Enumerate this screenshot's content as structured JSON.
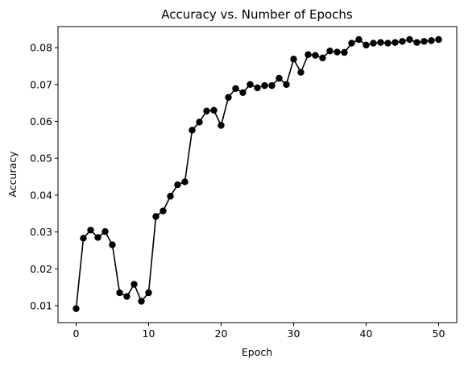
{
  "chart_data": {
    "type": "line",
    "title": "Accuracy vs. Number of Epochs",
    "xlabel": "Epoch",
    "ylabel": "Accuracy",
    "xlim": [
      -2.5,
      52.5
    ],
    "ylim": [
      0.0054,
      0.0857
    ],
    "x_ticks": [
      0,
      10,
      20,
      30,
      40,
      50
    ],
    "y_ticks": [
      0.01,
      0.02,
      0.03,
      0.04,
      0.05,
      0.06,
      0.07,
      0.08
    ],
    "x_tick_labels": [
      "0",
      "10",
      "20",
      "30",
      "40",
      "50"
    ],
    "y_tick_labels": [
      "0.01",
      "0.02",
      "0.03",
      "0.04",
      "0.05",
      "0.06",
      "0.07",
      "0.08"
    ],
    "grid": false,
    "line_color": "#000000",
    "marker": "circle",
    "series": [
      {
        "x": [
          0,
          1,
          2,
          3,
          4,
          5,
          6,
          7,
          8,
          9,
          10,
          11,
          12,
          13,
          14,
          15,
          16,
          17,
          18,
          19,
          20,
          21,
          22,
          23,
          24,
          25,
          26,
          27,
          28,
          29,
          30,
          31,
          32,
          33,
          34,
          35,
          36,
          37,
          38,
          39,
          40,
          41,
          42,
          43,
          44,
          45,
          46,
          47,
          48,
          49,
          50
        ],
        "values": [
          0.0092,
          0.0283,
          0.0305,
          0.0285,
          0.0301,
          0.0265,
          0.0135,
          0.0125,
          0.0158,
          0.0112,
          0.0135,
          0.0342,
          0.0357,
          0.0397,
          0.0428,
          0.0436,
          0.0576,
          0.0598,
          0.0628,
          0.063,
          0.0589,
          0.0665,
          0.0689,
          0.0678,
          0.07,
          0.0691,
          0.0697,
          0.0697,
          0.0717,
          0.07,
          0.0769,
          0.0733,
          0.0781,
          0.0779,
          0.0772,
          0.0791,
          0.0788,
          0.0787,
          0.0812,
          0.0822,
          0.0807,
          0.0812,
          0.0814,
          0.0812,
          0.0814,
          0.0817,
          0.0822,
          0.0814,
          0.0817,
          0.0819,
          0.0822
        ]
      }
    ]
  }
}
